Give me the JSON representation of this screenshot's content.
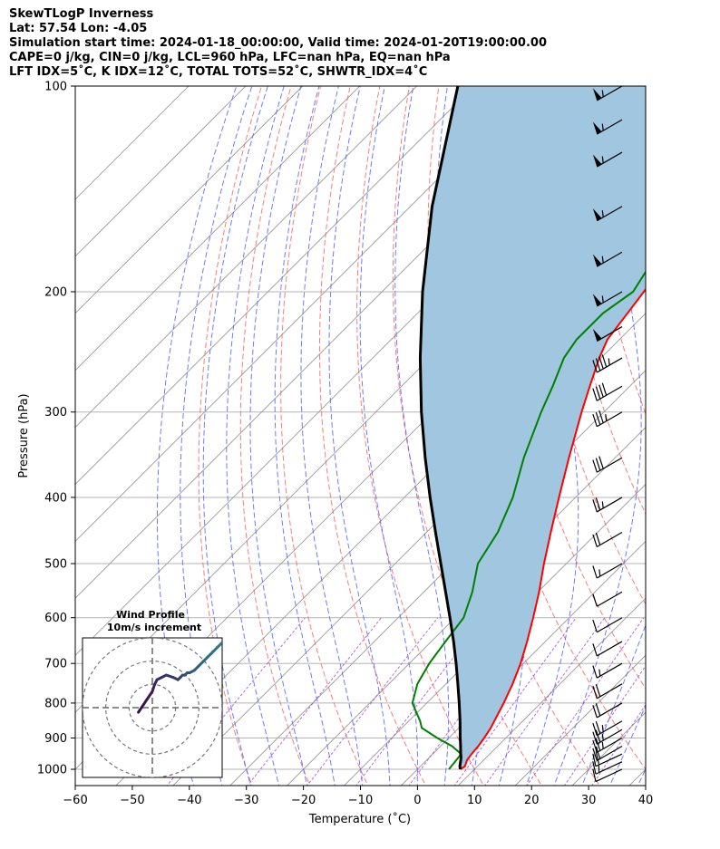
{
  "title_lines": [
    "SkewTLogP Inverness",
    "Lat: 57.54   Lon: -4.05",
    "Simulation start time: 2024-01-18_00:00:00, Valid time: 2024-01-20T19:00:00.00",
    "CAPE=0 j/kg, CIN=0 j/kg, LCL=960 hPa, LFC=nan hPa, EQ=nan hPa",
    "LFT IDX=5˚C, K IDX=12˚C, TOTAL TOTS=52˚C, SHWTR_IDX=4˚C"
  ],
  "chart_data": [
    {
      "type": "line",
      "subtype": "skew-T log-P diagram",
      "xlabel": "Temperature (˚C)",
      "ylabel": "Pressure (hPa)",
      "xlim": [
        -60,
        40
      ],
      "ylim": [
        1050,
        100
      ],
      "y_scale": "log",
      "grid": true,
      "x_ticks": [
        -60,
        -50,
        -40,
        -30,
        -20,
        -10,
        0,
        10,
        20,
        30,
        40
      ],
      "x_tick_labels": [
        "−60",
        "−50",
        "−40",
        "−30",
        "−20",
        "−10",
        "0",
        "10",
        "20",
        "30",
        "40"
      ],
      "y_ticks": [
        1000,
        900,
        800,
        700,
        600,
        500,
        400,
        300,
        200,
        100
      ],
      "y_tick_labels": [
        "1000",
        "900",
        "800",
        "700",
        "600",
        "500",
        "400",
        "300",
        "200",
        "100"
      ],
      "colors": {
        "temperature": "#ff0000",
        "dewpoint": "#008000",
        "parcel": "#000000",
        "fill": "#a1c6e0",
        "dry_adiabats": "#ff5a5a",
        "moist_adiabats": "#4a5aff",
        "mixing_ratio": "#a23bd4",
        "isotherms": "#9a9a9a",
        "grid": "#b5b5b5"
      },
      "series": [
        {
          "key": "temperature",
          "pressure": [
            1000,
            990,
            970,
            950,
            925,
            900,
            870,
            850,
            800,
            750,
            700,
            650,
            600,
            550,
            500,
            450,
            400,
            350,
            300,
            275,
            250,
            235,
            215,
            200,
            180,
            165,
            150,
            130,
            115,
            100
          ],
          "temperature": [
            7.5,
            7.8,
            7.1,
            6.8,
            6.6,
            6.2,
            5.6,
            5.0,
            3.5,
            1.7,
            -0.5,
            -3.2,
            -6.3,
            -9.8,
            -13.9,
            -18.2,
            -22.9,
            -28.1,
            -33.9,
            -37.0,
            -40.3,
            -42.1,
            -43.2,
            -44.1,
            -45.5,
            -46.5,
            -48.0,
            -49.5,
            -50.0,
            -51.0
          ]
        },
        {
          "key": "dewpoint",
          "pressure": [
            1000,
            990,
            970,
            950,
            925,
            900,
            870,
            850,
            800,
            750,
            700,
            650,
            600,
            550,
            500,
            450,
            400,
            350,
            300,
            275,
            250,
            235,
            215,
            200,
            180,
            165,
            150,
            130,
            115,
            100
          ],
          "temperature": [
            5.5,
            5.4,
            5.2,
            5.0,
            2.0,
            -2.0,
            -6.5,
            -8.0,
            -12.5,
            -15.0,
            -16.5,
            -17.5,
            -18.5,
            -21.5,
            -25.5,
            -27.5,
            -31.0,
            -36.0,
            -41.0,
            -43.5,
            -46.5,
            -47.5,
            -47.5,
            -46.0,
            -48.0,
            -50.5,
            -52.5,
            -53.0,
            -56.0,
            -60.0
          ]
        },
        {
          "key": "parcel",
          "pressure": [
            1000,
            990,
            970,
            960,
            950,
            925,
            900,
            850,
            800,
            750,
            700,
            650,
            600,
            550,
            500,
            450,
            400,
            350,
            300,
            250,
            200,
            150,
            100
          ],
          "temperature": [
            7.5,
            6.9,
            6.0,
            5.5,
            4.9,
            3.5,
            2.0,
            -1.0,
            -4.3,
            -7.9,
            -11.8,
            -16.1,
            -20.9,
            -26.2,
            -32.0,
            -38.4,
            -45.5,
            -53.3,
            -62.0,
            -71.7,
            -82.9,
            -96.2,
            -112.8
          ]
        }
      ],
      "wind_barbs": {
        "pressure": [
          1000,
          975,
          950,
          925,
          900,
          875,
          850,
          800,
          750,
          700,
          650,
          600,
          550,
          500,
          450,
          400,
          350,
          300,
          275,
          250,
          225,
          200,
          175,
          150,
          125,
          112,
          100
        ],
        "direction_deg": [
          245,
          245,
          245,
          240,
          240,
          240,
          240,
          240,
          240,
          240,
          240,
          240,
          240,
          240,
          240,
          240,
          240,
          240,
          240,
          240,
          240,
          240,
          240,
          240,
          240,
          240,
          240
        ],
        "speed_kt": [
          10,
          15,
          20,
          20,
          25,
          25,
          25,
          20,
          20,
          15,
          10,
          10,
          10,
          15,
          20,
          25,
          30,
          35,
          40,
          45,
          50,
          55,
          55,
          55,
          55,
          55,
          55
        ]
      }
    },
    {
      "type": "line",
      "subtype": "hodograph",
      "title": "Wind Profile",
      "subtitle": "10m/s increment",
      "ring_increment_ms": 10,
      "rings_ms": [
        10,
        20,
        30
      ],
      "lim_ms": [
        -30,
        30
      ],
      "colormap": [
        "#3b0f4f",
        "#2a788e"
      ],
      "u": [
        -6,
        -4,
        -2,
        0,
        1,
        2,
        4,
        6,
        9,
        11,
        12,
        13,
        14,
        15,
        16,
        18,
        20,
        22,
        24,
        26,
        28,
        30
      ],
      "v": [
        -2,
        1,
        4,
        7,
        10,
        12,
        13,
        14,
        13,
        12,
        13,
        14,
        14,
        15,
        15,
        16,
        18,
        20,
        22,
        24,
        26,
        28
      ]
    }
  ]
}
